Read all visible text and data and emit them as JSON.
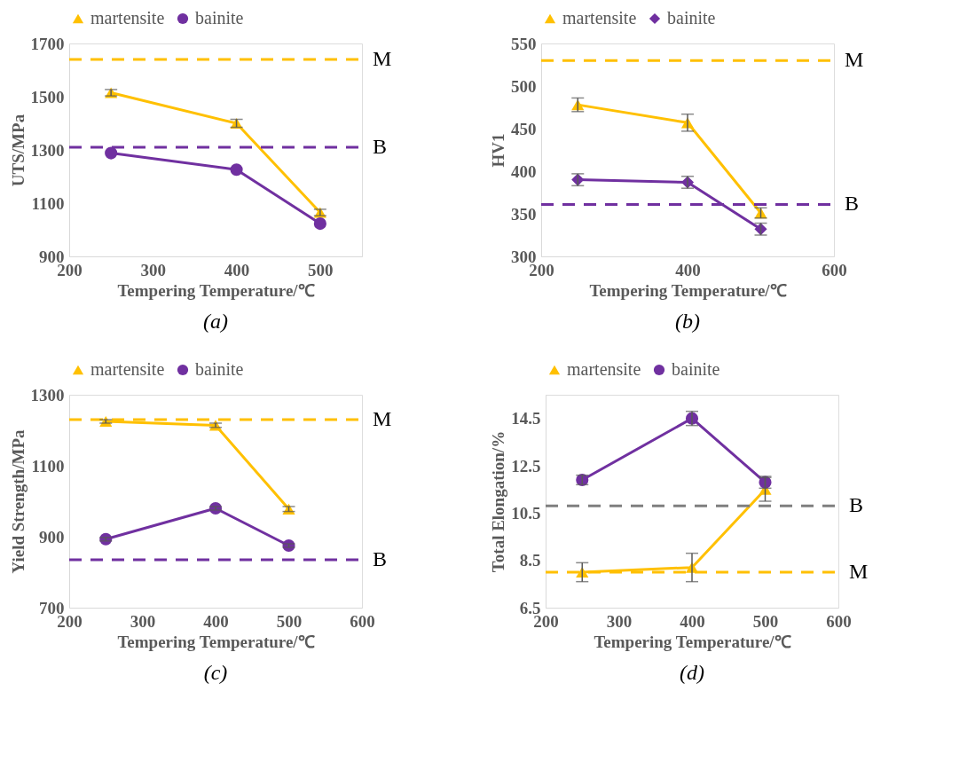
{
  "chart_data": [
    {
      "type": "line",
      "x": [
        250,
        400,
        500
      ],
      "xlabel": "Tempering Temperature/℃",
      "ylabel": "UTS/MPa",
      "xlim": [
        200,
        550
      ],
      "xticks": [
        200,
        300,
        400,
        500
      ],
      "ylim": [
        900,
        1700
      ],
      "yticks": [
        900,
        1100,
        1300,
        1500,
        1700
      ],
      "legend": "top",
      "grid": false,
      "line_style": "solid",
      "series": [
        {
          "name": "martensite",
          "color": "#ffc000",
          "marker": "triangle",
          "values": [
            1515,
            1400,
            1065
          ],
          "errors": [
            12,
            15,
            12
          ]
        },
        {
          "name": "bainite",
          "color": "#7030a0",
          "marker": "circle",
          "values": [
            1288,
            1226,
            1023
          ]
        }
      ],
      "ref_lines": [
        {
          "axis": "y",
          "value": 1640,
          "label": "M",
          "color": "#ffc000",
          "line_style": "dashed"
        },
        {
          "axis": "y",
          "value": 1310,
          "label": "B",
          "color": "#7030a0",
          "line_style": "dashed"
        }
      ],
      "annotations": [
        "(a)"
      ]
    },
    {
      "type": "line",
      "x": [
        250,
        400,
        500
      ],
      "xlabel": "Tempering Temperature/℃",
      "ylabel": "HV1",
      "xlim": [
        200,
        600
      ],
      "xticks": [
        200,
        400,
        600
      ],
      "ylim": [
        300,
        550
      ],
      "yticks": [
        300,
        350,
        400,
        450,
        500,
        550
      ],
      "legend": "top",
      "grid": false,
      "line_style": "solid",
      "series": [
        {
          "name": "martensite",
          "color": "#ffc000",
          "marker": "triangle",
          "values": [
            478,
            457,
            351
          ],
          "errors": [
            8,
            10,
            6
          ]
        },
        {
          "name": "bainite",
          "color": "#7030a0",
          "marker": "diamond",
          "values": [
            390,
            387,
            332
          ],
          "errors": [
            7,
            7,
            7
          ]
        }
      ],
      "ref_lines": [
        {
          "axis": "y",
          "value": 530,
          "label": "M",
          "color": "#ffc000",
          "line_style": "dashed"
        },
        {
          "axis": "y",
          "value": 361,
          "label": "B",
          "color": "#7030a0",
          "line_style": "dashed"
        }
      ],
      "annotations": [
        "(b)"
      ]
    },
    {
      "type": "line",
      "x": [
        250,
        400,
        500
      ],
      "xlabel": "Tempering Temperature/℃",
      "ylabel": "Yield Strength/MPa",
      "xlim": [
        200,
        600
      ],
      "xticks": [
        200,
        300,
        400,
        500,
        600
      ],
      "ylim": [
        700,
        1300
      ],
      "yticks": [
        700,
        900,
        1100,
        1300
      ],
      "legend": "top",
      "grid": false,
      "line_style": "solid",
      "series": [
        {
          "name": "martensite",
          "color": "#ffc000",
          "marker": "triangle",
          "values": [
            1225,
            1214,
            978
          ],
          "errors": [
            5,
            6,
            7
          ]
        },
        {
          "name": "bainite",
          "color": "#7030a0",
          "marker": "circle",
          "values": [
            893,
            980,
            875
          ],
          "errors": [
            5,
            5,
            5
          ]
        }
      ],
      "ref_lines": [
        {
          "axis": "y",
          "value": 1230,
          "label": "M",
          "color": "#ffc000",
          "line_style": "dashed"
        },
        {
          "axis": "y",
          "value": 835,
          "label": "B",
          "color": "#7030a0",
          "line_style": "dashed"
        }
      ],
      "annotations": [
        "(c)"
      ]
    },
    {
      "type": "line",
      "x": [
        250,
        400,
        500
      ],
      "xlabel": "Tempering Temperature/℃",
      "ylabel": "Total Elongation/%",
      "xlim": [
        200,
        600
      ],
      "xticks": [
        200,
        300,
        400,
        500,
        600
      ],
      "ylim": [
        6.5,
        15.5
      ],
      "yticks": [
        6.5,
        8.5,
        10.5,
        12.5,
        14.5
      ],
      "legend": "top",
      "grid": false,
      "line_style": "solid",
      "series": [
        {
          "name": "martensite",
          "color": "#ffc000",
          "marker": "triangle",
          "values": [
            8.0,
            8.2,
            11.5
          ],
          "errors": [
            0.4,
            0.6,
            0.5
          ]
        },
        {
          "name": "bainite",
          "color": "#7030a0",
          "marker": "circle",
          "values": [
            11.9,
            14.5,
            11.8
          ],
          "errors": [
            0.2,
            0.3,
            0.25
          ]
        }
      ],
      "ref_lines": [
        {
          "axis": "y",
          "value": 10.8,
          "label": "B",
          "color": "#7f7f7f",
          "line_style": "dashed"
        },
        {
          "axis": "y",
          "value": 8.0,
          "label": "M",
          "color": "#ffc000",
          "line_style": "dashed"
        }
      ],
      "annotations": [
        "(d)"
      ]
    }
  ]
}
